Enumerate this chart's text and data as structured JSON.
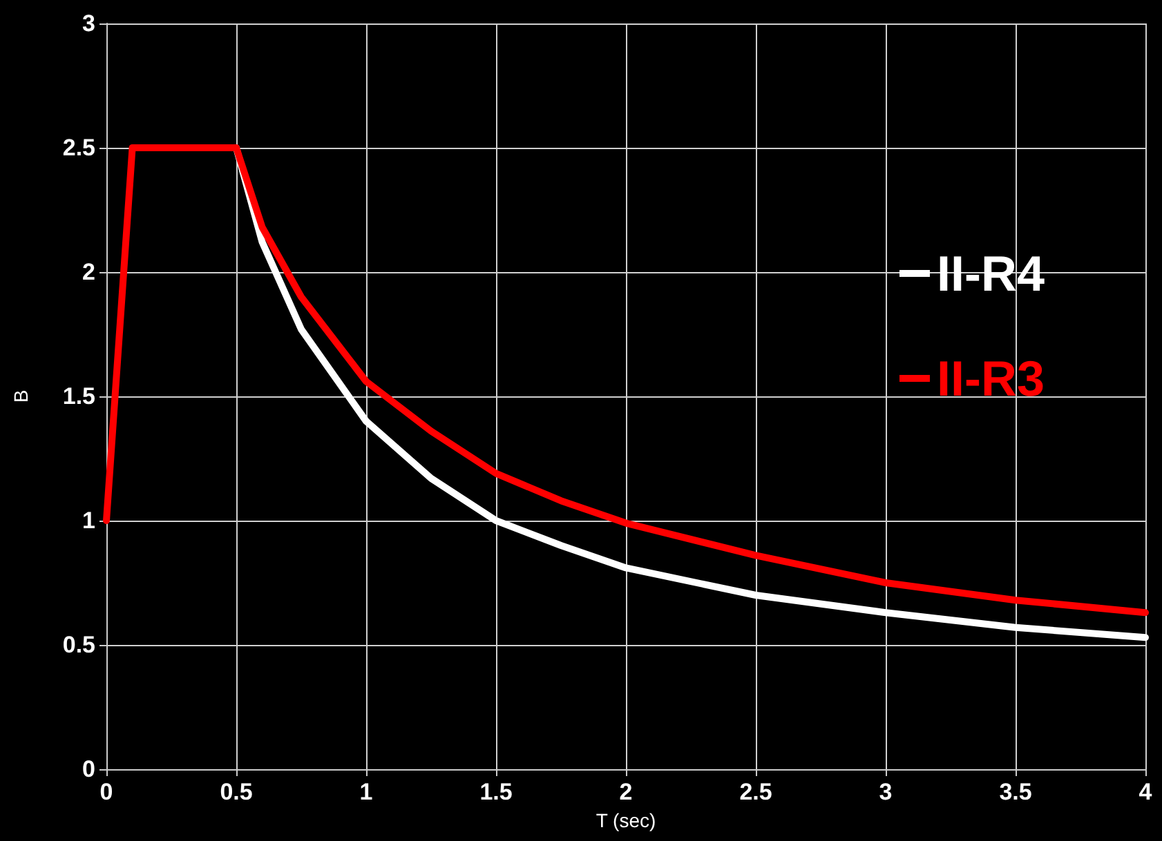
{
  "chart_data": {
    "type": "line",
    "xlabel": "T (sec)",
    "ylabel": "B",
    "xlim": [
      0,
      4
    ],
    "xticks": [
      0,
      0.5,
      1,
      1.5,
      2,
      2.5,
      3,
      3.5,
      4
    ],
    "ylim": [
      0,
      3
    ],
    "yticks": [
      0,
      0.5,
      1,
      1.5,
      2,
      2.5,
      3
    ],
    "grid": true,
    "legend": "right",
    "marker": "none",
    "line_style": "solid",
    "series": [
      {
        "name": "II-R4",
        "color": "#ffffff",
        "x": [
          0.5,
          0.6,
          0.75,
          1,
          1.25,
          1.5,
          1.75,
          2,
          2.5,
          3,
          3.5,
          4
        ],
        "values": [
          2.5,
          2.12,
          1.77,
          1.4,
          1.17,
          1.0,
          0.9,
          0.81,
          0.7,
          0.63,
          0.57,
          0.53
        ]
      },
      {
        "name": "II-R3",
        "color": "#ff0000",
        "x": [
          0,
          0.1,
          0.5,
          0.6,
          0.75,
          1,
          1.25,
          1.5,
          1.75,
          2,
          2.5,
          3,
          3.5,
          4
        ],
        "values": [
          1,
          2.5,
          2.5,
          2.18,
          1.9,
          1.56,
          1.36,
          1.19,
          1.08,
          0.99,
          0.86,
          0.75,
          0.68,
          0.63
        ]
      }
    ]
  }
}
